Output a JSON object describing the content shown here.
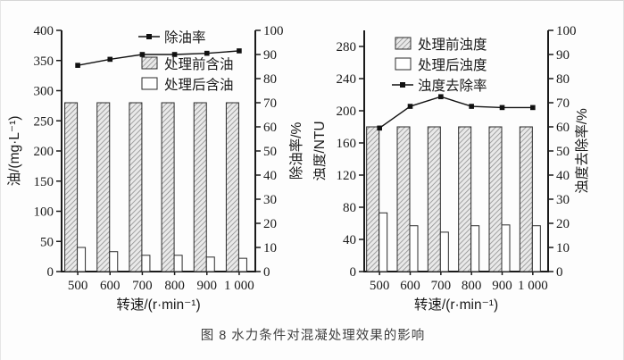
{
  "caption": "图 8 水力条件对混凝处理效果的影响",
  "colors": {
    "axis": "#1a1a1a",
    "line": "#111111",
    "bar_border": "#2b2b2b",
    "hatch_line": "#8f8f8f",
    "hatch_bg": "#e9e9e9",
    "open_bar_fill": "#ffffff",
    "caption_text": "#3f3f3f",
    "background": "#ffffff"
  },
  "chart_data": [
    {
      "type": "bar",
      "subtype": "grouped-bars-with-line",
      "title": "",
      "categories": [
        "500",
        "600",
        "700",
        "800",
        "900",
        "1 000"
      ],
      "xlabel": "转速/(r·min⁻¹)",
      "ylabel_left": "油/(mg·L⁻¹)",
      "ylabel_right": "除油率/%",
      "left_axis": {
        "min": 0,
        "max": 400,
        "step": 50
      },
      "right_axis": {
        "min": 0,
        "max": 100,
        "step": 10
      },
      "grid": false,
      "series": [
        {
          "name": "处理前含油",
          "type": "bar",
          "style": "hatch",
          "axis": "left",
          "values": [
            280,
            280,
            280,
            280,
            280,
            280
          ]
        },
        {
          "name": "处理后含油",
          "type": "bar",
          "style": "open",
          "axis": "left",
          "values": [
            40,
            33,
            27,
            27,
            24,
            22
          ]
        },
        {
          "name": "除油率",
          "type": "line",
          "style": "square-marker",
          "axis": "right",
          "values": [
            85.5,
            88,
            90,
            90,
            90.5,
            91.5
          ]
        }
      ],
      "legend": {
        "position": "upper-center-inside",
        "items": [
          {
            "type": "line",
            "label": "除油率"
          },
          {
            "type": "hatch",
            "label": "处理前含油"
          },
          {
            "type": "open",
            "label": "处理后含油"
          }
        ]
      }
    },
    {
      "type": "bar",
      "subtype": "grouped-bars-with-line",
      "title": "",
      "categories": [
        "500",
        "600",
        "700",
        "800",
        "900",
        "1 000"
      ],
      "xlabel": "转速/(r·min⁻¹)",
      "ylabel_left": "浊度/NTU",
      "ylabel_right": "浊度去除率/%",
      "left_axis": {
        "min": 0,
        "max": 300,
        "step": 40,
        "label_max": 280
      },
      "right_axis": {
        "min": 0,
        "max": 100,
        "step": 10
      },
      "grid": false,
      "series": [
        {
          "name": "处理前浊度",
          "type": "bar",
          "style": "hatch",
          "axis": "left",
          "values": [
            180,
            180,
            180,
            180,
            180,
            180
          ]
        },
        {
          "name": "处理后浊度",
          "type": "bar",
          "style": "open",
          "axis": "left",
          "values": [
            73,
            57,
            49,
            57,
            58,
            57
          ]
        },
        {
          "name": "浊度去除率",
          "type": "line",
          "style": "square-marker",
          "axis": "right",
          "values": [
            59.5,
            68.5,
            72.5,
            68.5,
            68,
            68
          ]
        }
      ],
      "legend": {
        "position": "upper-left-inside",
        "items": [
          {
            "type": "hatch",
            "label": "处理前浊度"
          },
          {
            "type": "open",
            "label": "处理后浊度"
          },
          {
            "type": "line",
            "label": "浊度去除率"
          }
        ]
      }
    }
  ]
}
